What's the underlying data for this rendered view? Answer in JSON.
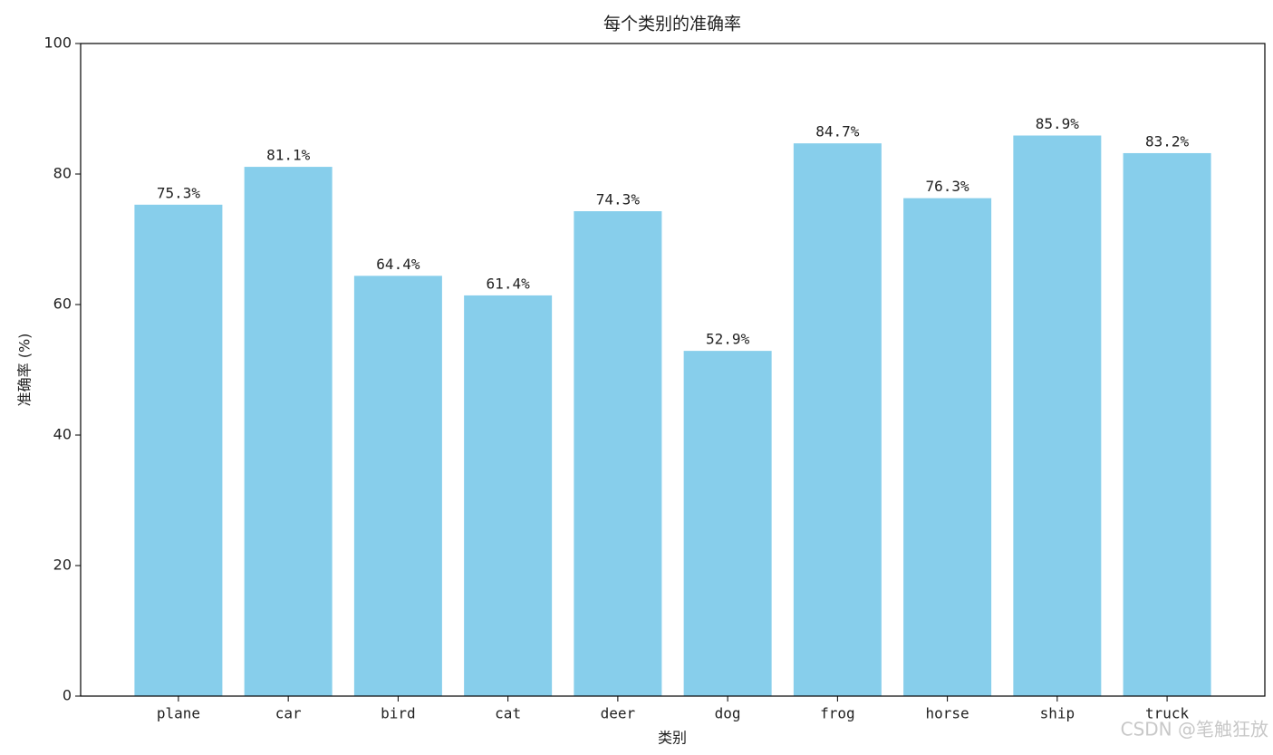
{
  "chart_data": {
    "type": "bar",
    "title": "每个类别的准确率",
    "x_label": "类别",
    "y_label": "准确率 (%)",
    "categories": [
      "plane",
      "car",
      "bird",
      "cat",
      "deer",
      "dog",
      "frog",
      "horse",
      "ship",
      "truck"
    ],
    "values": [
      75.3,
      81.1,
      64.4,
      61.4,
      74.3,
      52.9,
      84.7,
      76.3,
      85.9,
      83.2
    ],
    "value_labels": [
      "75.3%",
      "81.1%",
      "64.4%",
      "61.4%",
      "74.3%",
      "52.9%",
      "84.7%",
      "76.3%",
      "85.9%",
      "83.2%"
    ],
    "color": "#87ceeb",
    "ylim": [
      0,
      100
    ],
    "yticks": [
      0,
      20,
      40,
      60,
      80,
      100
    ],
    "grid": false
  },
  "watermark": "CSDN @笔触狂放"
}
